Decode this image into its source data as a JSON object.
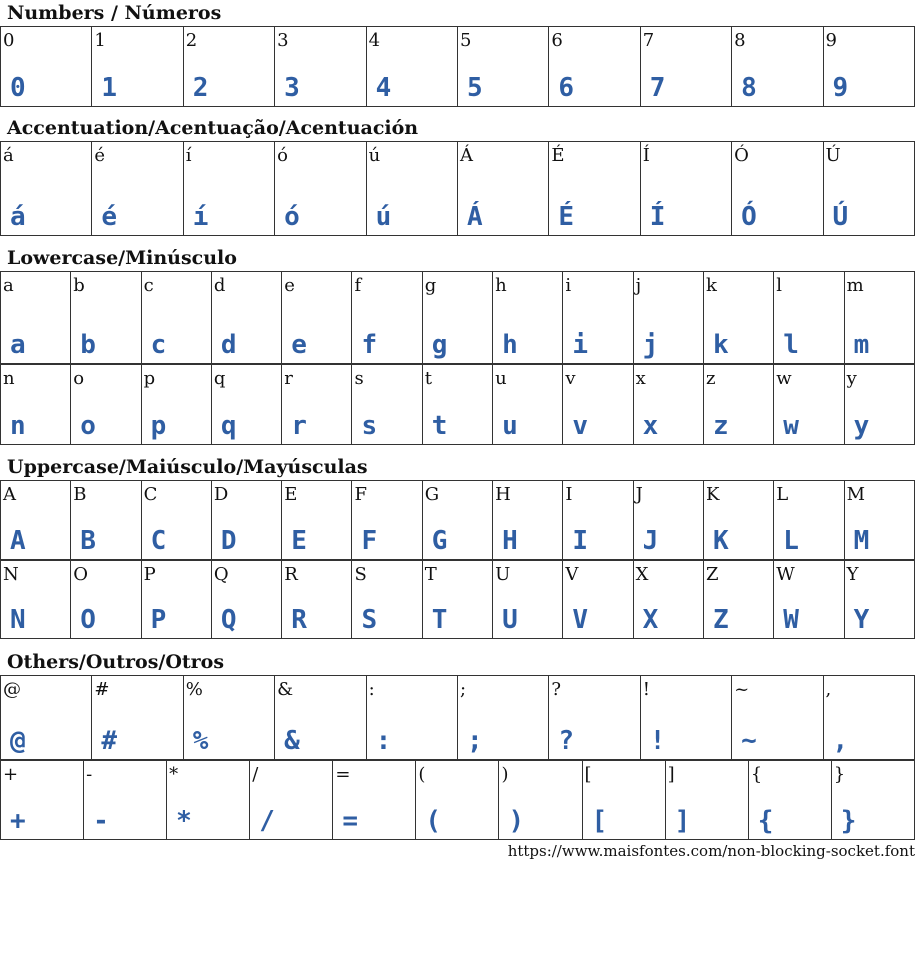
{
  "glyph_color": "#2f5ea3",
  "sections": [
    {
      "title": "Numbers / Números",
      "rows": [
        [
          "0",
          "1",
          "2",
          "3",
          "4",
          "5",
          "6",
          "7",
          "8",
          "9"
        ]
      ]
    },
    {
      "title": "Accentuation/Acentuação/Acentuación",
      "rows": [
        [
          "á",
          "é",
          "í",
          "ó",
          "ú",
          "Á",
          "É",
          "Í",
          "Ó",
          "Ú"
        ]
      ]
    },
    {
      "title": "Lowercase/Minúsculo",
      "rows": [
        [
          "a",
          "b",
          "c",
          "d",
          "e",
          "f",
          "g",
          "h",
          "i",
          "j",
          "k",
          "l",
          "m"
        ],
        [
          "n",
          "o",
          "p",
          "q",
          "r",
          "s",
          "t",
          "u",
          "v",
          "x",
          "z",
          "w",
          "y"
        ]
      ]
    },
    {
      "title": "Uppercase/Maiúsculo/Mayúsculas",
      "rows": [
        [
          "A",
          "B",
          "C",
          "D",
          "E",
          "F",
          "G",
          "H",
          "I",
          "J",
          "K",
          "L",
          "M"
        ],
        [
          "N",
          "O",
          "P",
          "Q",
          "R",
          "S",
          "T",
          "U",
          "V",
          "X",
          "Z",
          "W",
          "Y"
        ]
      ]
    },
    {
      "title": "Others/Outros/Otros",
      "rows": [
        [
          "@",
          "#",
          "%",
          "&",
          ":",
          ";",
          "?",
          "!",
          "~",
          ","
        ],
        [
          "+",
          "-",
          "*",
          "/",
          "=",
          "(",
          ")",
          "[",
          "]",
          "{",
          "}"
        ]
      ]
    }
  ],
  "footer": {
    "url": "https://www.maisfontes.com/non-blocking-socket.font"
  }
}
